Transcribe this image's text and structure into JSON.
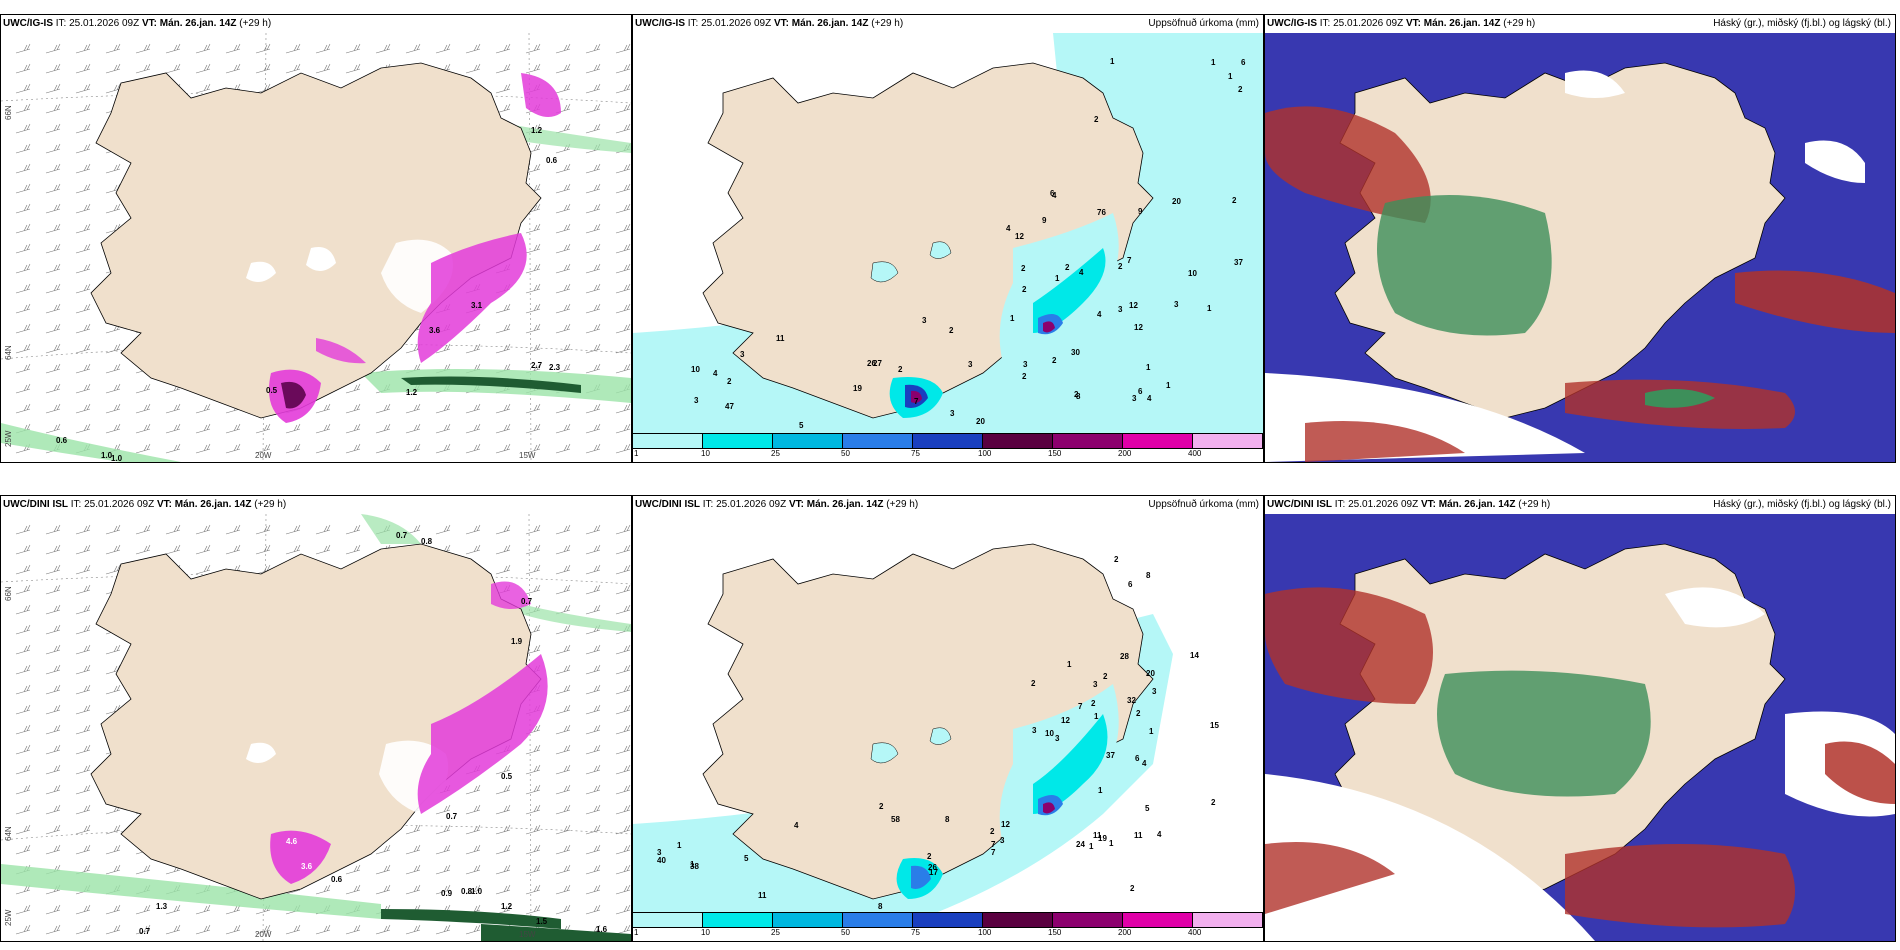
{
  "panels": {
    "p1": {
      "model": "UWC/IG-IS",
      "it": "IT: 25.01.2026 09Z",
      "vt_label": "VT:",
      "vt": "Mán. 26.jan. 14Z",
      "lead": "(+29 h)",
      "right_title": ""
    },
    "p2": {
      "model": "UWC/IG-IS",
      "it": "IT: 25.01.2026 09Z",
      "vt_label": "VT:",
      "vt": "Mán. 26.jan. 14Z",
      "lead": "(+29 h)",
      "right_title": "Uppsöfnuð úrkoma (mm)"
    },
    "p3": {
      "model": "UWC/IG-IS",
      "it": "IT: 25.01.2026 09Z",
      "vt_label": "VT:",
      "vt": "Mán. 26.jan. 14Z",
      "lead": "(+29 h)",
      "right_title": "Háský (gr.), miðský (fj.bl.) og lágský (bl.)"
    },
    "p4": {
      "model": "UWC/DINI ISL",
      "it": "IT: 25.01.2026 09Z",
      "vt_label": "VT:",
      "vt": "Mán. 26.jan. 14Z",
      "lead": "(+29 h)",
      "right_title": ""
    },
    "p5": {
      "model": "UWC/DINI ISL",
      "it": "IT: 25.01.2026 09Z",
      "vt_label": "VT:",
      "vt": "Mán. 26.jan. 14Z",
      "lead": "(+29 h)",
      "right_title": "Uppsöfnuð úrkoma (mm)"
    },
    "p6": {
      "model": "UWC/DINI ISL",
      "it": "IT: 25.01.2026 09Z",
      "vt_label": "VT:",
      "vt": "Mán. 26.jan. 14Z",
      "lead": "(+29 h)",
      "right_title": "Háský (gr.), miðský (fj.bl.) og lágský (bl.)"
    }
  },
  "axes": {
    "lat_66": "66N",
    "lat_64": "64N",
    "lon_25": "25W",
    "lon_20": "20W",
    "lon_15": "15W"
  },
  "colorbar": {
    "labels": [
      "1",
      "10",
      "25",
      "50",
      "75",
      "100",
      "150",
      "200",
      "400"
    ],
    "colors": [
      "#b5f7f7",
      "#00e8e8",
      "#00b8e0",
      "#2a7de8",
      "#1a3fbf",
      "#5a0040",
      "#8c006e",
      "#e000a8",
      "#f2b0ee"
    ]
  },
  "precip_values": {
    "top": [
      "1",
      "9",
      "19",
      "8",
      "2",
      "3",
      "1",
      "3",
      "2",
      "10",
      "2",
      "2",
      "1",
      "1",
      "3",
      "2",
      "4",
      "20",
      "1",
      "2",
      "11",
      "3",
      "6",
      "26",
      "2",
      "4",
      "3",
      "2",
      "4",
      "47",
      "6",
      "30",
      "10",
      "76",
      "9",
      "2",
      "37",
      "6",
      "5",
      "12",
      "12",
      "3",
      "1",
      "12",
      "27",
      "1",
      "4",
      "2",
      "20",
      "7",
      "7",
      "4",
      "2",
      "2",
      "3",
      "2",
      "3",
      "3",
      "1",
      "4"
    ],
    "bottom": [
      "2",
      "2",
      "5",
      "3",
      "2",
      "2",
      "2",
      "1",
      "2",
      "2",
      "3",
      "3",
      "14",
      "1",
      "1",
      "3",
      "3",
      "1",
      "12",
      "1",
      "4",
      "4",
      "19",
      "38",
      "37",
      "1",
      "8",
      "8",
      "32",
      "40",
      "6",
      "24",
      "26",
      "28",
      "4",
      "7",
      "1",
      "10",
      "8",
      "7",
      "5",
      "58",
      "20",
      "12",
      "17",
      "15",
      "11",
      "11",
      "6",
      "2",
      "2",
      "2",
      "1",
      "7",
      "11",
      "3"
    ]
  },
  "analysis_values": {
    "top": [
      "1.2",
      "0.6",
      "0.5",
      "0.6",
      "1.0",
      "1.0",
      "2.7",
      "2.3",
      "1.2",
      "3.1",
      "3.6"
    ],
    "bottom": [
      "0.7",
      "0.8",
      "0.7",
      "1.9",
      "0.5",
      "0.7",
      "1.3",
      "0.7",
      "0.6",
      "0.8",
      "1.5",
      "1.6",
      "1.2",
      "0.9",
      "1.0",
      "3.6",
      "4.6"
    ]
  },
  "colors": {
    "land": "#f0e0cc",
    "precip_light": "#b5f7f7",
    "precip_cyan": "#00e8e8",
    "pink": "#e33bd9",
    "green": "#9be3a8",
    "dark_green": "#1f5c32",
    "cloud_high": "#b0322a",
    "cloud_mid": "#3d8f5a",
    "cloud_low": "#3838b0"
  }
}
